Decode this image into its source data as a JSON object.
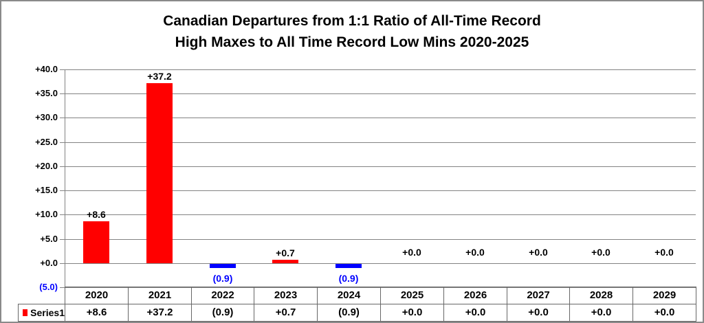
{
  "chart_data": {
    "type": "bar",
    "title_line1": "Canadian Departures from 1:1 Ratio of All-Time Record",
    "title_line2": "High Maxes to All Time Record Low Mins 2020-2025",
    "categories": [
      "2020",
      "2021",
      "2022",
      "2023",
      "2024",
      "2025",
      "2026",
      "2027",
      "2028",
      "2029"
    ],
    "series": [
      {
        "name": "Series1",
        "values": [
          8.6,
          37.2,
          -0.9,
          0.7,
          -0.9,
          0.0,
          0.0,
          0.0,
          0.0,
          0.0
        ]
      }
    ],
    "point_labels": [
      "+8.6",
      "+37.2",
      "(0.9)",
      "+0.7",
      "(0.9)",
      "+0.0",
      "+0.0",
      "+0.0",
      "+0.0",
      "+0.0"
    ],
    "y_ticks": [
      {
        "value": 40,
        "label": "+40.0"
      },
      {
        "value": 35,
        "label": "+35.0"
      },
      {
        "value": 30,
        "label": "+30.0"
      },
      {
        "value": 25,
        "label": "+25.0"
      },
      {
        "value": 20,
        "label": "+20.0"
      },
      {
        "value": 15,
        "label": "+15.0"
      },
      {
        "value": 10,
        "label": "+10.0"
      },
      {
        "value": 5,
        "label": "+5.0"
      },
      {
        "value": 0,
        "label": "+0.0"
      },
      {
        "value": -5,
        "label": "(5.0)"
      }
    ],
    "ylim": [
      -5,
      40
    ],
    "grid": true,
    "legend_position": "data-table-left",
    "legend_label": "Series1",
    "data_table": {
      "header_row": [
        "2020",
        "2021",
        "2022",
        "2023",
        "2024",
        "2025",
        "2026",
        "2027",
        "2028",
        "2029"
      ],
      "series_row_label": "Series1",
      "series_row_values": [
        "+8.6",
        "+37.2",
        "(0.9)",
        "+0.7",
        "(0.9)",
        "+0.0",
        "+0.0",
        "+0.0",
        "+0.0",
        "+0.0"
      ]
    },
    "colors": {
      "positive_bar": "#ff0000",
      "negative_bar": "#0000ff",
      "positive_label": "#000000",
      "negative_label": "#0000ff",
      "gridline": "#828282",
      "axis_line": "#828282",
      "table_border": "#666666",
      "title_text": "#000000",
      "background": "#ffffff"
    }
  }
}
